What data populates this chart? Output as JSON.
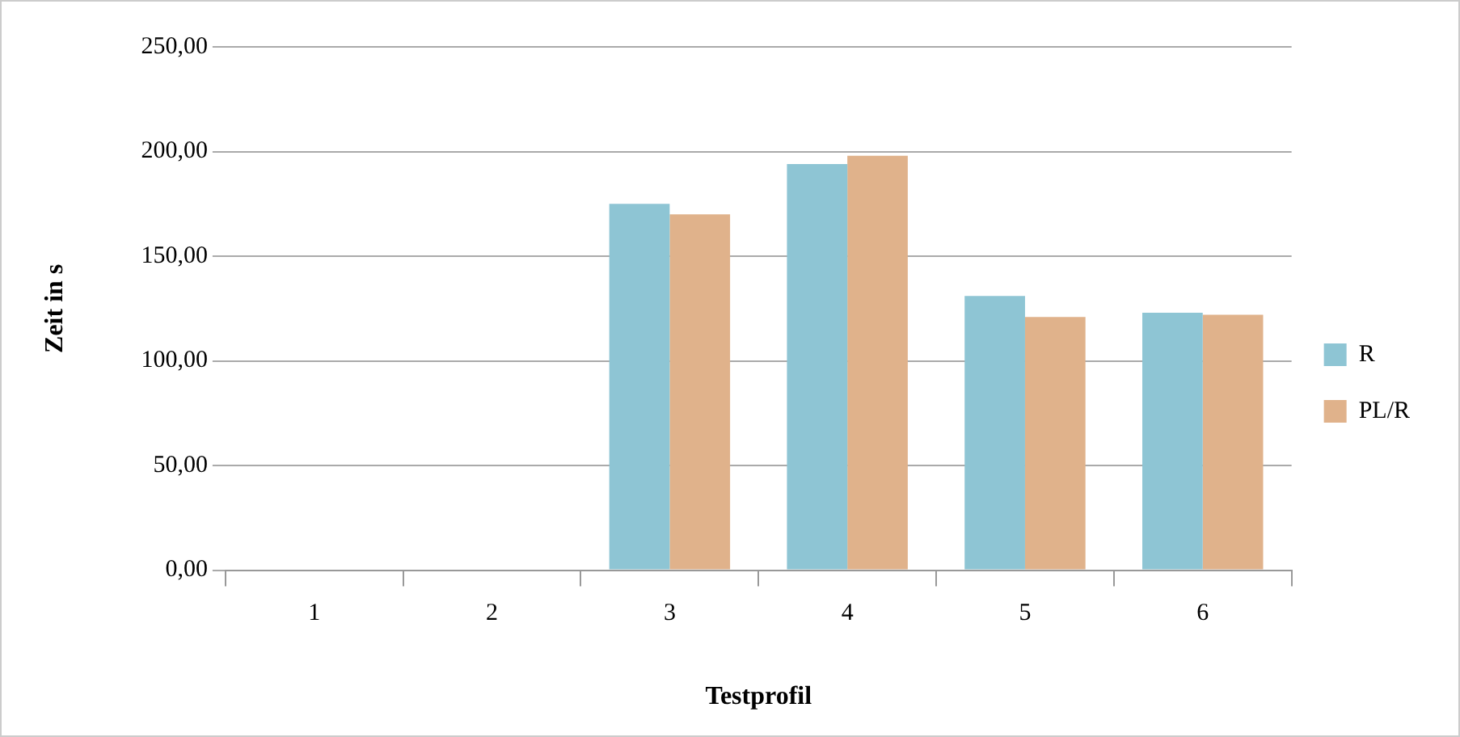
{
  "chart_data": {
    "type": "bar",
    "xlabel": "Testprofil",
    "ylabel": "Zeit in s",
    "categories": [
      "1",
      "2",
      "3",
      "4",
      "5",
      "6"
    ],
    "series": [
      {
        "name": "R",
        "color": "#8ec5d4",
        "values": [
          null,
          null,
          175,
          194,
          131,
          123
        ]
      },
      {
        "name": "PL/R",
        "color": "#e0b28b",
        "values": [
          null,
          null,
          170,
          198,
          121,
          122
        ]
      }
    ],
    "ylim": [
      0,
      250
    ],
    "yticks": [
      {
        "value": 0,
        "label": "0,00"
      },
      {
        "value": 50,
        "label": "50,00"
      },
      {
        "value": 100,
        "label": "100,00"
      },
      {
        "value": 150,
        "label": "150,00"
      },
      {
        "value": 200,
        "label": "200,00"
      },
      {
        "value": 250,
        "label": "250,00"
      }
    ],
    "grid": "y",
    "legend": "right"
  }
}
